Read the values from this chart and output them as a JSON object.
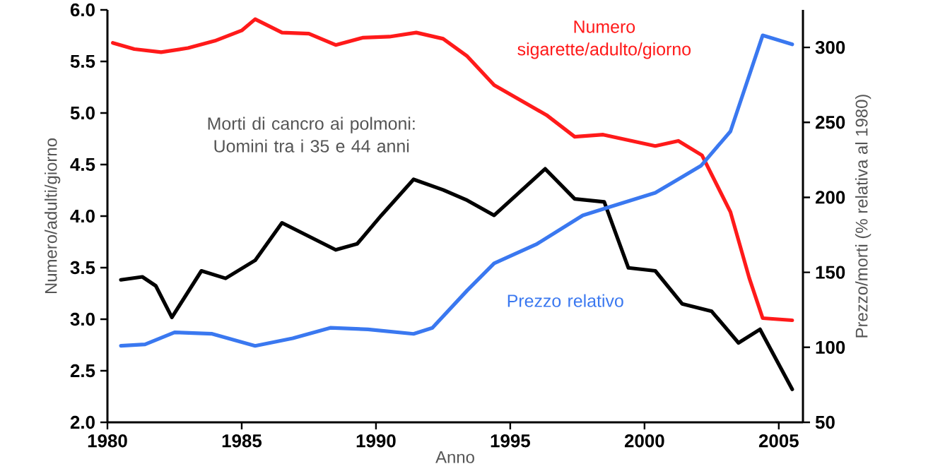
{
  "chart_data": {
    "type": "line",
    "xlabel": "Anno",
    "ylabel": "Numero/adulti/giorno",
    "y2label": "Prezzo/morti (% relativa al 1980)",
    "xlim": [
      1980,
      2005.9
    ],
    "xticks": [
      1980,
      1985,
      1990,
      1995,
      2000,
      2005
    ],
    "ylim": [
      2.0,
      6.0
    ],
    "yticks": [
      {
        "value": 2,
        "label": "2.0"
      },
      2.5,
      {
        "value": 3,
        "label": "3.0"
      },
      3.5,
      {
        "value": 4,
        "label": "4.0"
      },
      4.5,
      {
        "value": 5,
        "label": "5.0"
      },
      5.5,
      {
        "value": 6,
        "label": "6.0"
      }
    ],
    "y2lim": [
      50,
      325
    ],
    "y2ticks": [
      50,
      100,
      150,
      200,
      250,
      300
    ],
    "series": [
      {
        "name": "Numero sigarette/adulto/giorno",
        "color": "#ff1a1a",
        "x": [
          1980.2,
          1981,
          1982,
          1983,
          1984,
          1985,
          1985.5,
          1986.5,
          1987.5,
          1988.5,
          1989.5,
          1990.5,
          1991.5,
          1992.5,
          1993.4,
          1994.4,
          1996.35,
          1997.4,
          1998.46,
          2000.4,
          2001.26,
          2002.14,
          2003.2,
          2003.9,
          2004.4,
          2005.5
        ],
        "values": [
          5.68,
          5.62,
          5.59,
          5.63,
          5.7,
          5.8,
          5.91,
          5.78,
          5.77,
          5.66,
          5.73,
          5.74,
          5.78,
          5.72,
          5.55,
          5.27,
          4.98,
          4.77,
          4.79,
          4.68,
          4.73,
          4.59,
          4.04,
          3.4,
          3.01,
          2.99
        ]
      },
      {
        "name": "Morti di cancro ai polmoni: Uomini tra i 35 e 44 anni",
        "color": "#000000",
        "axis": "y2",
        "x": [
          1980.5,
          1981.3,
          1981.8,
          1982.4,
          1983.5,
          1984.4,
          1985.5,
          1986.5,
          1988.5,
          1989.3,
          1990.2,
          1991.4,
          1992.5,
          1993.4,
          1994.4,
          1996.3,
          1997.4,
          1998.5,
          1999.4,
          2000.4,
          2001.4,
          2002.5,
          2003.5,
          2004.3,
          2005.5
        ],
        "values": [
          145,
          147,
          141,
          120,
          151,
          146,
          158,
          183,
          165,
          169,
          188,
          212,
          205,
          198,
          188,
          219,
          199,
          197,
          153,
          151,
          129,
          124,
          103,
          112,
          72
        ]
      },
      {
        "name": "Prezzo relativo",
        "color": "#3a78f0",
        "axis": "y2",
        "x": [
          1980.5,
          1981.4,
          1982.5,
          1983.9,
          1985.5,
          1986.9,
          1988.3,
          1989.7,
          1991.4,
          1992.1,
          1993.4,
          1994.4,
          1996,
          1997.7,
          1998.6,
          2000.4,
          2002.1,
          2003.2,
          2004.4,
          2005.5
        ],
        "values": [
          101,
          102,
          110,
          109,
          101,
          106,
          113,
          112,
          109,
          113,
          138,
          156,
          169,
          188,
          193,
          203,
          221,
          244,
          308,
          302
        ]
      }
    ]
  }
}
